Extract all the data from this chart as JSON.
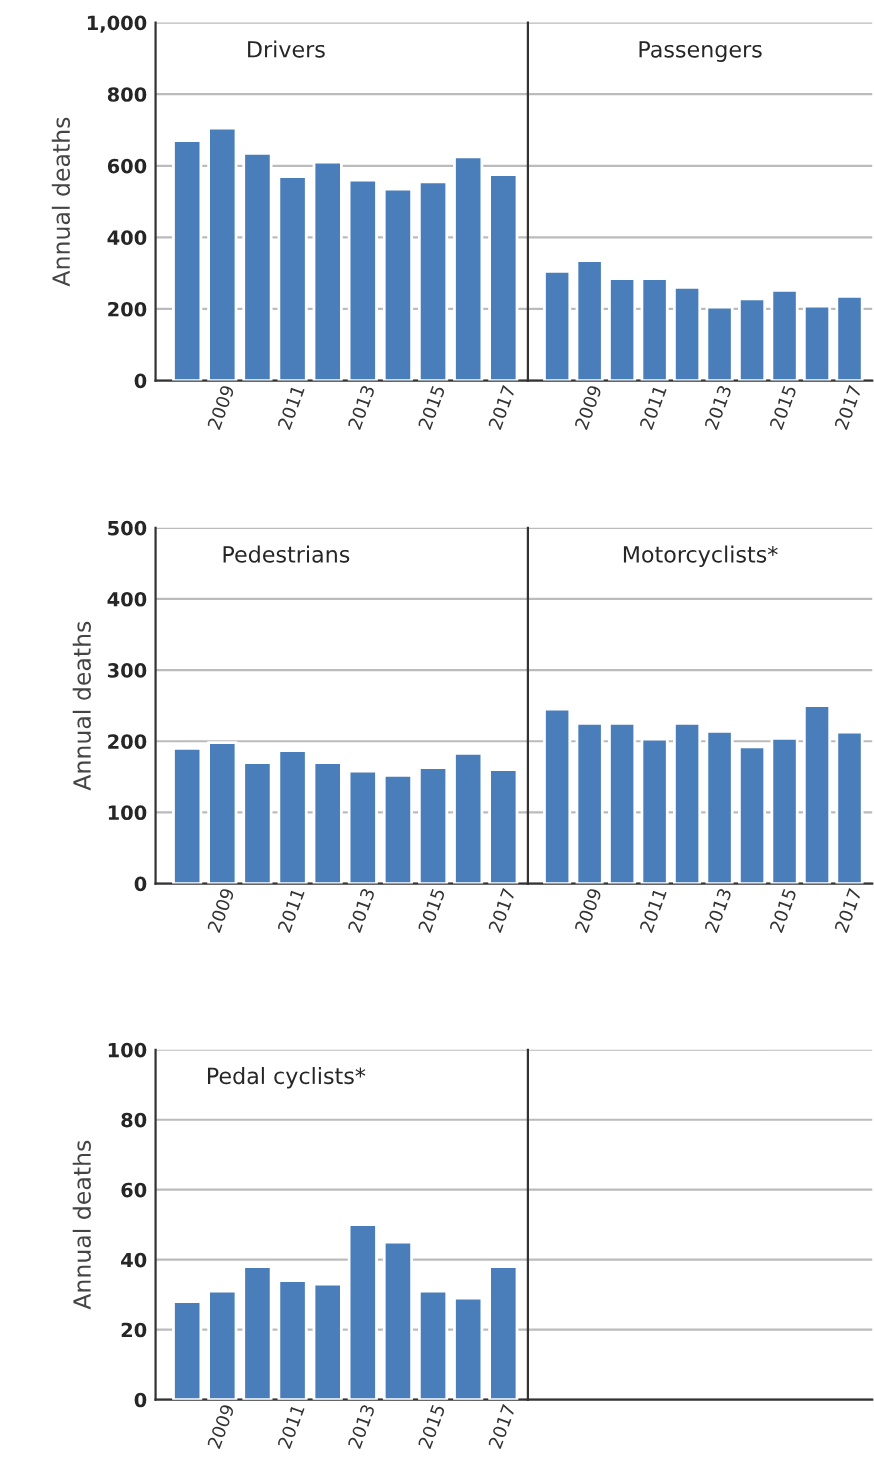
{
  "chart_data": [
    {
      "type": "bar",
      "title": "Drivers",
      "ylabel": "Annual deaths",
      "categories": [
        null,
        "2009",
        null,
        "2011",
        null,
        "2013",
        null,
        "2015",
        null,
        "2017"
      ],
      "color": "#4a7ebb",
      "values": [
        670,
        705,
        635,
        570,
        610,
        560,
        535,
        555,
        625,
        575
      ],
      "ylim": [
        0,
        1000
      ],
      "yticks": [
        0,
        200,
        400,
        600,
        800,
        {
          "value": 1000,
          "label": "1,000"
        }
      ],
      "grid": "y"
    },
    {
      "type": "bar",
      "title": "Passengers",
      "categories": [
        null,
        "2009",
        null,
        "2011",
        null,
        "2013",
        null,
        "2015",
        null,
        "2017"
      ],
      "color": "#4a7ebb",
      "values": [
        305,
        335,
        285,
        285,
        260,
        205,
        228,
        252,
        208,
        235
      ],
      "ylim": [
        0,
        1000
      ],
      "yticks": [
        0,
        200,
        400,
        600,
        800,
        1000
      ],
      "grid": "y",
      "tick_labels": "x"
    },
    {
      "type": "bar",
      "title": "Pedestrians",
      "ylabel": "Annual deaths",
      "categories": [
        null,
        "2009",
        null,
        "2011",
        null,
        "2013",
        null,
        "2015",
        null,
        "2017"
      ],
      "color": "#4a7ebb",
      "values": [
        190,
        198,
        170,
        187,
        170,
        158,
        152,
        163,
        183,
        160
      ],
      "ylim": [
        0,
        500
      ],
      "yticks": [
        0,
        100,
        200,
        300,
        400,
        500
      ],
      "grid": "y"
    },
    {
      "type": "bar",
      "title": "Motorcyclists*",
      "categories": [
        null,
        "2009",
        null,
        "2011",
        null,
        "2013",
        null,
        "2015",
        null,
        "2017"
      ],
      "color": "#4a7ebb",
      "values": [
        245,
        225,
        225,
        203,
        225,
        214,
        192,
        204,
        250,
        213
      ],
      "ylim": [
        0,
        500
      ],
      "yticks": [
        0,
        100,
        200,
        300,
        400,
        500
      ],
      "grid": "y",
      "tick_labels": "x"
    },
    {
      "type": "bar",
      "title": "Pedal cyclists*",
      "ylabel": "Annual deaths",
      "categories": [
        null,
        "2009",
        null,
        "2011",
        null,
        "2013",
        null,
        "2015",
        null,
        "2017"
      ],
      "color": "#4a7ebb",
      "values": [
        28,
        31,
        38,
        34,
        33,
        50,
        45,
        31,
        29,
        38
      ],
      "ylim": [
        0,
        100
      ],
      "yticks": [
        0,
        20,
        40,
        60,
        80,
        100
      ],
      "grid": "y"
    }
  ]
}
